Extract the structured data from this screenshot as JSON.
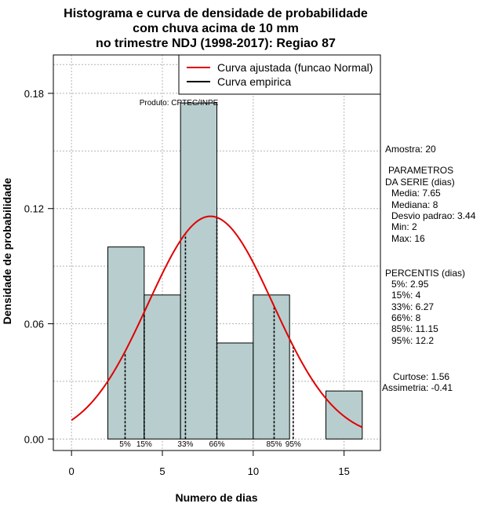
{
  "chart_data": {
    "type": "bar",
    "title_lines": [
      "Histograma e curva de densidade de probabilidade",
      "com chuva acima de 10 mm",
      "no trimestre NDJ (1998-2017): Regiao 87"
    ],
    "xlabel": "Numero de dias",
    "ylabel": "Densidade de probabilidade",
    "xlim": [
      -1,
      17
    ],
    "ylim": [
      -0.006,
      0.2
    ],
    "x_ticks": [
      0,
      5,
      10,
      15
    ],
    "y_ticks": [
      0.0,
      0.06,
      0.12,
      0.18
    ],
    "y_tick_labels": [
      "0.00",
      "0.06",
      "0.12",
      "0.18"
    ],
    "bins": [
      {
        "from": 2,
        "to": 4,
        "density": 0.1
      },
      {
        "from": 4,
        "to": 6,
        "density": 0.075
      },
      {
        "from": 6,
        "to": 8,
        "density": 0.175
      },
      {
        "from": 8,
        "to": 10,
        "density": 0.05
      },
      {
        "from": 10,
        "to": 12,
        "density": 0.075
      },
      {
        "from": 14,
        "to": 16,
        "density": 0.025
      }
    ],
    "bar_color": "#b8cece",
    "normal_curve": {
      "mean": 7.65,
      "sd": 3.44,
      "x_from": 0,
      "x_to": 16,
      "color": "#e00000"
    },
    "percentile_lines": [
      {
        "x": 2.95,
        "label": "5%"
      },
      {
        "x": 4,
        "label": "15%"
      },
      {
        "x": 6.27,
        "label": "33%"
      },
      {
        "x": 8,
        "label": "66%"
      },
      {
        "x": 11.15,
        "label": "85%"
      },
      {
        "x": 12.2,
        "label": "95%"
      }
    ],
    "legend": [
      {
        "label": "Curva ajustada (funcao Normal)",
        "color": "#e00000"
      },
      {
        "label": "Curva empirica",
        "color": "#000000"
      }
    ],
    "legend_position": "top-right",
    "grid": true,
    "annotation": "Produto: CPTEC/INPE"
  },
  "side_panel": {
    "sample": "Amostra: 20",
    "params_title": [
      "PARAMETROS",
      "DA SERIE (dias)"
    ],
    "params": [
      "Media: 7.65",
      "Mediana: 8",
      "Desvio padrao: 3.44",
      "Min: 2",
      "Max: 16"
    ],
    "percentiles_title": "PERCENTIS (dias)",
    "percentiles": [
      "5%: 2.95",
      "15%: 4",
      "33%: 6.27",
      "66%: 8",
      "85%: 11.15",
      "95%: 12.2"
    ],
    "kurtosis": "Curtose: 1.56",
    "skewness": "Assimetria: -0.41"
  }
}
